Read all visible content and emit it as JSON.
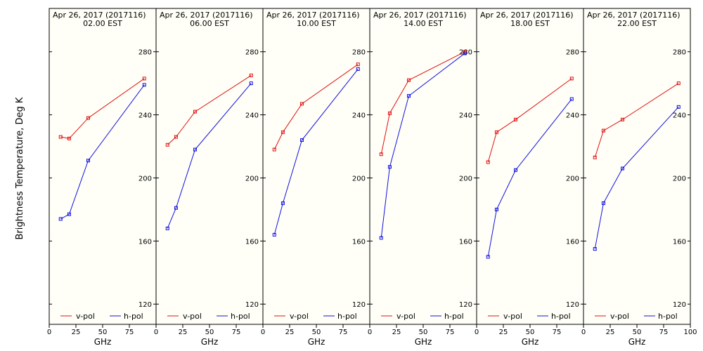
{
  "ylabel": "Brightness Temperature, Deg K",
  "xlabel": "GHz",
  "colors": {
    "v": "#e01010",
    "h": "#1010e0",
    "panel_bg": "#fffff8",
    "axis": "#000000"
  },
  "chart_data": {
    "type": "line",
    "xlim": [
      0,
      100
    ],
    "ylim": [
      100,
      295
    ],
    "x_ticks": [
      0,
      25,
      50,
      75,
      100
    ],
    "y_ticks": [
      120,
      160,
      200,
      240,
      280
    ],
    "x": [
      10.7,
      18.7,
      36.5,
      89.0
    ],
    "legend": [
      "v-pol",
      "h-pol"
    ],
    "panels": [
      {
        "date": "Apr 26, 2017 (2017116)",
        "time": "02.00 EST",
        "series": [
          {
            "name": "v-pol",
            "values": [
              226,
              225,
              238,
              263
            ]
          },
          {
            "name": "h-pol",
            "values": [
              174,
              177,
              211,
              259
            ]
          }
        ]
      },
      {
        "date": "Apr 26, 2017 (2017116)",
        "time": "06.00 EST",
        "series": [
          {
            "name": "v-pol",
            "values": [
              221,
              226,
              242,
              265
            ]
          },
          {
            "name": "h-pol",
            "values": [
              168,
              181,
              218,
              260
            ]
          }
        ]
      },
      {
        "date": "Apr 26, 2017 (2017116)",
        "time": "10.00 EST",
        "series": [
          {
            "name": "v-pol",
            "values": [
              218,
              229,
              247,
              272
            ]
          },
          {
            "name": "h-pol",
            "values": [
              164,
              184,
              224,
              269
            ]
          }
        ]
      },
      {
        "date": "Apr 26, 2017 (2017116)",
        "time": "14.00 EST",
        "series": [
          {
            "name": "v-pol",
            "values": [
              215,
              241,
              262,
              280
            ]
          },
          {
            "name": "h-pol",
            "values": [
              162,
              207,
              252,
              279
            ]
          }
        ]
      },
      {
        "date": "Apr 26, 2017 (2017116)",
        "time": "18.00 EST",
        "series": [
          {
            "name": "v-pol",
            "values": [
              210,
              229,
              237,
              263
            ]
          },
          {
            "name": "h-pol",
            "values": [
              150,
              180,
              205,
              250
            ]
          }
        ]
      },
      {
        "date": "Apr 26, 2017 (2017116)",
        "time": "22.00 EST",
        "series": [
          {
            "name": "v-pol",
            "values": [
              213,
              230,
              237,
              260
            ]
          },
          {
            "name": "h-pol",
            "values": [
              155,
              184,
              206,
              245
            ]
          }
        ]
      }
    ]
  }
}
